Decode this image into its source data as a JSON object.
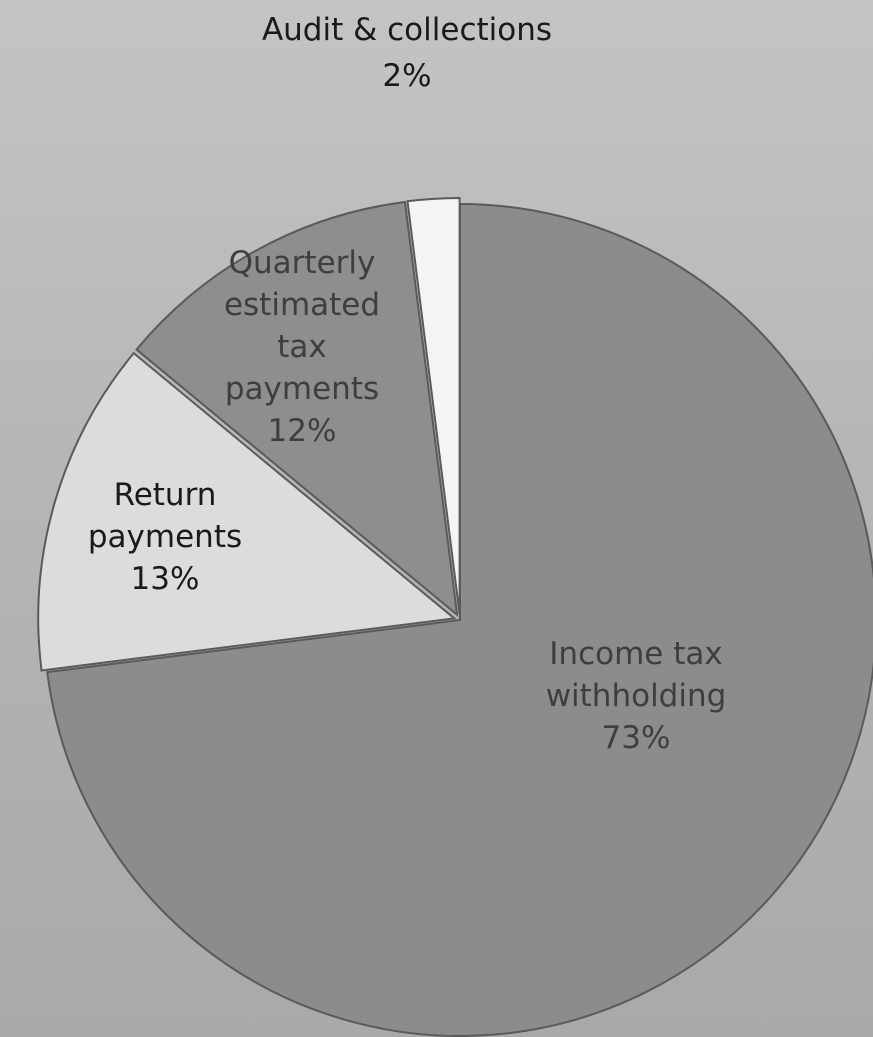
{
  "chart_data": {
    "type": "pie",
    "title": "",
    "unit": "%",
    "slices": [
      {
        "key": "income",
        "label_lines": [
          "Income tax",
          "withholding"
        ],
        "value": 73,
        "value_label": "73%",
        "color": "#8c8c8c",
        "exploded": false
      },
      {
        "key": "return",
        "label_lines": [
          "Return",
          "payments"
        ],
        "value": 13,
        "value_label": "13%",
        "color": "#dcdcdc",
        "exploded": true
      },
      {
        "key": "quarterly",
        "label_lines": [
          "Quarterly",
          "estimated",
          "tax",
          "payments"
        ],
        "value": 12,
        "value_label": "12%",
        "color": "#8e8e8e",
        "exploded": true
      },
      {
        "key": "audit",
        "label_lines": [
          "Audit & collections"
        ],
        "value": 2,
        "value_label": "2%",
        "color": "#f4f4f4",
        "exploded": true
      }
    ]
  }
}
